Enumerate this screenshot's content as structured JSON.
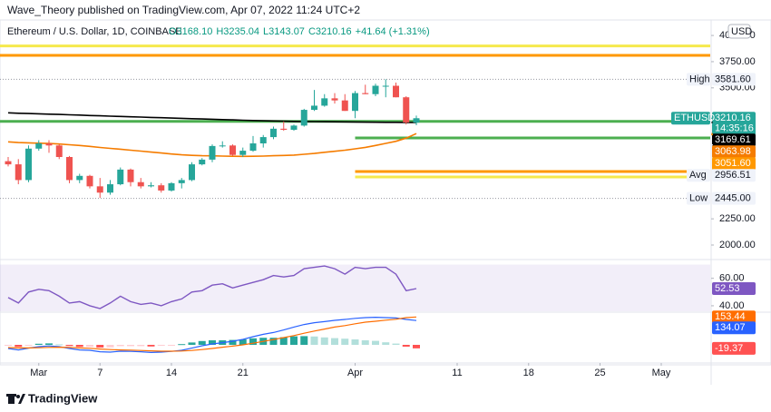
{
  "header": "Wave_Theory published on TradingView.com, Apr 07, 2022 11:24 UTC+2",
  "footer": "TradingView",
  "chart_data": [
    {
      "type": "candlestick",
      "title": "Ethereum / U.S. Dollar, 1D, COINBASE",
      "legend": [
        "O3168.10",
        "H3235.04",
        "L3143.07",
        "C3210.16",
        "+41.64 (+1.31%)"
      ],
      "currency": "USD",
      "symbol": "ETHUSD",
      "countdown": "14:35:16",
      "up_color": "#26a69a",
      "down_color": "#ef5350",
      "open": [
        2800,
        2770,
        2620,
        2920,
        2970,
        2950,
        2840,
        2620,
        2660,
        2560,
        2500,
        2580,
        2720,
        2600,
        2560,
        2570,
        2520,
        2590,
        2620,
        2770,
        2815,
        2945,
        2950,
        2860,
        2900,
        2970,
        3030,
        3110,
        3100,
        3140,
        3290,
        3330,
        3400,
        3380,
        3280,
        3450,
        3440,
        3520,
        3520,
        3410,
        3168.1
      ],
      "high": [
        2840,
        2820,
        2950,
        3000,
        3000,
        2960,
        2850,
        2680,
        2670,
        2640,
        2620,
        2740,
        2730,
        2640,
        2600,
        2590,
        2600,
        2640,
        2790,
        2830,
        2960,
        2990,
        2960,
        2930,
        3040,
        3050,
        3130,
        3180,
        3150,
        3300,
        3480,
        3440,
        3450,
        3440,
        3470,
        3530,
        3540,
        3581.6,
        3550,
        3420,
        3235.04
      ],
      "low": [
        2750,
        2580,
        2600,
        2900,
        2880,
        2820,
        2590,
        2590,
        2540,
        2450,
        2480,
        2570,
        2560,
        2540,
        2550,
        2500,
        2510,
        2540,
        2610,
        2760,
        2790,
        2930,
        2850,
        2840,
        2890,
        2930,
        3010,
        3090,
        3090,
        3130,
        3280,
        3320,
        3350,
        3280,
        3210,
        3440,
        3420,
        3410,
        3410,
        3150,
        3143.07
      ],
      "close": [
        2770,
        2620,
        2920,
        2970,
        2950,
        2840,
        2620,
        2660,
        2560,
        2500,
        2580,
        2720,
        2600,
        2560,
        2570,
        2520,
        2590,
        2620,
        2770,
        2815,
        2945,
        2950,
        2860,
        2900,
        2970,
        3030,
        3110,
        3100,
        3140,
        3290,
        3330,
        3400,
        3380,
        3280,
        3450,
        3440,
        3520,
        3520,
        3410,
        3170,
        3210.16
      ],
      "lines": [
        {
          "color": "#000000",
          "values": [
            3262,
            3258,
            3255,
            3252,
            3249,
            3246,
            3243,
            3240,
            3236,
            3233,
            3230,
            3227,
            3224,
            3221,
            3218,
            3215,
            3212,
            3209,
            3206,
            3203,
            3200,
            3197,
            3194,
            3191,
            3188,
            3186,
            3184,
            3182,
            3180,
            3179,
            3178,
            3177,
            3176,
            3175,
            3174,
            3173,
            3172,
            3171,
            3171,
            3170,
            3169.61
          ]
        },
        {
          "color": "#f57c00",
          "values": [
            2985,
            2978,
            2975,
            2972,
            2969,
            2964,
            2957,
            2950,
            2941,
            2931,
            2922,
            2915,
            2905,
            2896,
            2887,
            2878,
            2869,
            2861,
            2856,
            2852,
            2851,
            2849,
            2847,
            2846,
            2847,
            2849,
            2852,
            2855,
            2858,
            2866,
            2874,
            2885,
            2895,
            2905,
            2918,
            2932,
            2950,
            2970,
            2990,
            3020,
            3063.98
          ]
        }
      ],
      "levels": [
        {
          "value": 3900,
          "color": "#f5e94c"
        },
        {
          "value": 3810,
          "color": "#ff9800"
        },
        {
          "value": 3180,
          "color": "#4caf50"
        },
        {
          "value": 3022,
          "color": "#4caf50",
          "from": 34
        },
        {
          "value": 2701,
          "color": "#ff9800",
          "from": 34
        },
        {
          "value": 2650,
          "color": "#f5e94c",
          "from": 34
        }
      ],
      "price_labels": [
        {
          "name": "High",
          "value": 3581.6,
          "label": "3581.60"
        },
        {
          "value": 3051.6,
          "label": "3051.60",
          "color": "#ff9800"
        },
        {
          "name": "Avg",
          "value": 2956.51
        },
        {
          "name": "Low",
          "value": 2445,
          "label": "2445.00"
        }
      ],
      "ylim": [
        1870,
        4122
      ],
      "yticks": [
        {
          "value": 4000,
          "label": "4000.00"
        },
        {
          "value": 3750,
          "label": "3750.00"
        },
        {
          "value": 3500,
          "label": "3500.00"
        },
        {
          "value": 2250,
          "label": "2250.00"
        },
        {
          "value": 2000,
          "label": "2000.00"
        }
      ],
      "xlim": [
        -0.8,
        68.8
      ],
      "xticks": [
        {
          "value": 3,
          "label": "Mar"
        },
        {
          "value": 9,
          "label": "7"
        },
        {
          "value": 16,
          "label": "14"
        },
        {
          "value": 23,
          "label": "21"
        },
        {
          "value": 34,
          "label": "Apr"
        },
        {
          "value": 44,
          "label": "11"
        },
        {
          "value": 51,
          "label": "18"
        },
        {
          "value": 58,
          "label": "25"
        },
        {
          "value": 64,
          "label": "May"
        }
      ]
    },
    {
      "type": "rsi",
      "series": [
        {
          "color": "#7e57c2",
          "values": [
            46,
            42,
            50,
            52,
            51,
            47,
            42,
            43,
            40,
            38,
            42,
            47,
            43,
            41,
            42,
            40,
            43,
            45,
            50,
            51,
            55,
            56,
            53,
            55,
            57,
            59,
            62,
            61,
            62,
            67,
            68,
            69,
            67,
            63,
            68,
            67,
            68,
            68,
            63,
            51,
            52.53
          ]
        }
      ],
      "band": [
        30,
        70
      ],
      "ylim": [
        36,
        73
      ],
      "yticks": [
        {
          "value": 60,
          "label": "60.00"
        },
        {
          "value": 40,
          "label": "40.00"
        }
      ]
    },
    {
      "type": "macd",
      "series": [
        {
          "color": "#2962ff",
          "values": [
            -20,
            -28,
            -18,
            -10,
            -6,
            -10,
            -20,
            -28,
            -30,
            -38,
            -40,
            -35,
            -36,
            -38,
            -42,
            -40,
            -36,
            -30,
            -18,
            -5,
            5,
            12,
            20,
            30,
            45,
            58,
            68,
            82,
            98,
            112,
            122,
            128,
            135,
            140,
            146,
            150,
            152,
            150,
            148,
            140,
            134.07
          ]
        },
        {
          "color": "#ff6d00",
          "values": [
            -15,
            -17,
            -17,
            -16,
            -14,
            -13,
            -14,
            -17,
            -19,
            -23,
            -26,
            -28,
            -29,
            -31,
            -33,
            -35,
            -35,
            -34,
            -31,
            -26,
            -20,
            -13,
            -7,
            0,
            9,
            19,
            29,
            40,
            51,
            64,
            76,
            87,
            98,
            106,
            116,
            125,
            130,
            136,
            141,
            150,
            153.44
          ]
        }
      ],
      "histogram": [
        -5,
        -11,
        -1,
        6,
        8,
        3,
        -6,
        -11,
        -11,
        -15,
        -14,
        -7,
        -7,
        -7,
        -9,
        -5,
        -1,
        4,
        13,
        21,
        25,
        25,
        27,
        30,
        36,
        39,
        39,
        42,
        47,
        48,
        46,
        41,
        37,
        34,
        30,
        25,
        22,
        14,
        7,
        -10,
        -19.37
      ],
      "histogram_colors": [
        "#26a69a",
        "#b2dfdb",
        "#ffcdd2",
        "#ff5252"
      ],
      "ylim": [
        -90,
        175
      ]
    }
  ]
}
